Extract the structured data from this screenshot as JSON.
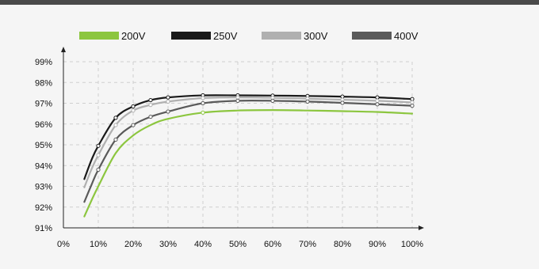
{
  "chart_data": {
    "type": "line",
    "title": "",
    "xlabel": "",
    "ylabel": "",
    "x_ticks": [
      "0%",
      "10%",
      "20%",
      "30%",
      "40%",
      "50%",
      "60%",
      "70%",
      "80%",
      "90%",
      "100%"
    ],
    "y_ticks": [
      "91%",
      "92%",
      "93%",
      "94%",
      "95%",
      "96%",
      "97%",
      "98%",
      "99%"
    ],
    "xlim": [
      0,
      100
    ],
    "ylim": [
      91,
      99
    ],
    "grid": true,
    "legend_position": "top",
    "x": [
      6,
      8,
      10,
      15,
      20,
      25,
      30,
      40,
      50,
      60,
      70,
      80,
      90,
      100
    ],
    "series": [
      {
        "name": "200V",
        "color": "#8cc63f",
        "values": [
          91.55,
          92.3,
          93.0,
          94.6,
          95.45,
          95.95,
          96.25,
          96.55,
          96.65,
          96.67,
          96.65,
          96.62,
          96.58,
          96.5
        ]
      },
      {
        "name": "250V",
        "color": "#1a1a1a",
        "values": [
          93.35,
          94.25,
          94.95,
          96.3,
          96.85,
          97.15,
          97.28,
          97.38,
          97.38,
          97.37,
          97.35,
          97.32,
          97.28,
          97.2
        ]
      },
      {
        "name": "300V",
        "color": "#b0b0b0",
        "values": [
          92.95,
          93.8,
          94.5,
          95.95,
          96.65,
          96.92,
          97.08,
          97.25,
          97.28,
          97.26,
          97.22,
          97.17,
          97.12,
          97.04
        ]
      },
      {
        "name": "400V",
        "color": "#5a5a5a",
        "values": [
          92.25,
          93.05,
          93.8,
          95.25,
          95.95,
          96.35,
          96.6,
          97.0,
          97.12,
          97.12,
          97.08,
          97.02,
          96.95,
          96.88
        ]
      }
    ]
  }
}
